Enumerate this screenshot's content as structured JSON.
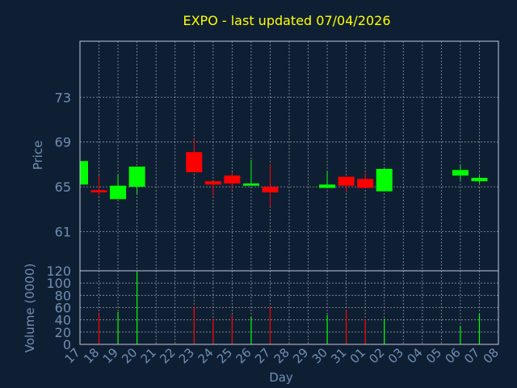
{
  "colors": {
    "background": "#0f1f33",
    "title": "#ffff00",
    "axis_text": "#6f8fb5",
    "frame": "#c0c8d8",
    "grid": "#c8c8c8",
    "up": "#00ff00",
    "down": "#ff0000"
  },
  "chart_data": [
    {
      "type": "candlestick",
      "title": "EXPO - last updated 07/04/2026",
      "xlabel": "",
      "ylabel": "Price",
      "ylim": [
        57.5,
        78
      ],
      "yticks": [
        61,
        65,
        69,
        73
      ],
      "grid": true,
      "x_tick_labels": [
        "17",
        "18",
        "19",
        "20",
        "21",
        "22",
        "23",
        "24",
        "25",
        "26",
        "27",
        "28",
        "29",
        "30",
        "31",
        "01",
        "02",
        "03",
        "04",
        "05",
        "06",
        "07",
        "08"
      ],
      "candles": [
        {
          "day": "17",
          "open": 65.2,
          "close": 67.3,
          "high": 67.3,
          "low": 65.2
        },
        {
          "day": "18",
          "open": 64.7,
          "close": 64.5,
          "high": 66.0,
          "low": 64.2
        },
        {
          "day": "19",
          "open": 63.9,
          "close": 65.1,
          "high": 66.1,
          "low": 63.9
        },
        {
          "day": "20",
          "open": 65.0,
          "close": 66.8,
          "high": 66.8,
          "low": 64.3
        },
        {
          "day": "23",
          "open": 68.1,
          "close": 66.3,
          "high": 69.3,
          "low": 66.3
        },
        {
          "day": "24",
          "open": 65.5,
          "close": 65.2,
          "high": 65.5,
          "low": 64.2
        },
        {
          "day": "25",
          "open": 66.0,
          "close": 65.3,
          "high": 66.3,
          "low": 64.8
        },
        {
          "day": "26",
          "open": 65.1,
          "close": 65.3,
          "high": 67.4,
          "low": 65.1
        },
        {
          "day": "27",
          "open": 65.0,
          "close": 64.5,
          "high": 67.0,
          "low": 63.2
        },
        {
          "day": "30",
          "open": 64.9,
          "close": 65.2,
          "high": 66.4,
          "low": 64.9
        },
        {
          "day": "31",
          "open": 65.9,
          "close": 65.1,
          "high": 65.9,
          "low": 64.5
        },
        {
          "day": "01",
          "open": 65.7,
          "close": 64.9,
          "high": 66.2,
          "low": 64.9
        },
        {
          "day": "02",
          "open": 64.6,
          "close": 66.6,
          "high": 66.7,
          "low": 64.6
        },
        {
          "day": "06",
          "open": 66.0,
          "close": 66.5,
          "high": 66.9,
          "low": 65.6
        },
        {
          "day": "07",
          "open": 65.5,
          "close": 65.8,
          "high": 66.0,
          "low": 65.3
        }
      ]
    },
    {
      "type": "bar",
      "xlabel": "Day",
      "ylabel": "Volume (0000)",
      "ylim": [
        0,
        120
      ],
      "yticks": [
        0,
        20,
        40,
        60,
        80,
        100,
        120
      ],
      "grid": true,
      "x_tick_labels": [
        "17",
        "18",
        "19",
        "20",
        "21",
        "22",
        "23",
        "24",
        "25",
        "26",
        "27",
        "28",
        "29",
        "30",
        "31",
        "01",
        "02",
        "03",
        "04",
        "05",
        "06",
        "07",
        "08"
      ],
      "bars": [
        {
          "day": "18",
          "value": 50,
          "direction": "down"
        },
        {
          "day": "19",
          "value": 53,
          "direction": "up"
        },
        {
          "day": "20",
          "value": 118,
          "direction": "up"
        },
        {
          "day": "23",
          "value": 62,
          "direction": "down"
        },
        {
          "day": "24",
          "value": 42,
          "direction": "down"
        },
        {
          "day": "25",
          "value": 48,
          "direction": "down"
        },
        {
          "day": "26",
          "value": 45,
          "direction": "up"
        },
        {
          "day": "27",
          "value": 62,
          "direction": "down"
        },
        {
          "day": "30",
          "value": 48,
          "direction": "up"
        },
        {
          "day": "31",
          "value": 56,
          "direction": "down"
        },
        {
          "day": "01",
          "value": 41,
          "direction": "down"
        },
        {
          "day": "02",
          "value": 42,
          "direction": "up"
        },
        {
          "day": "06",
          "value": 30,
          "direction": "up"
        },
        {
          "day": "07",
          "value": 50,
          "direction": "up"
        }
      ]
    }
  ]
}
